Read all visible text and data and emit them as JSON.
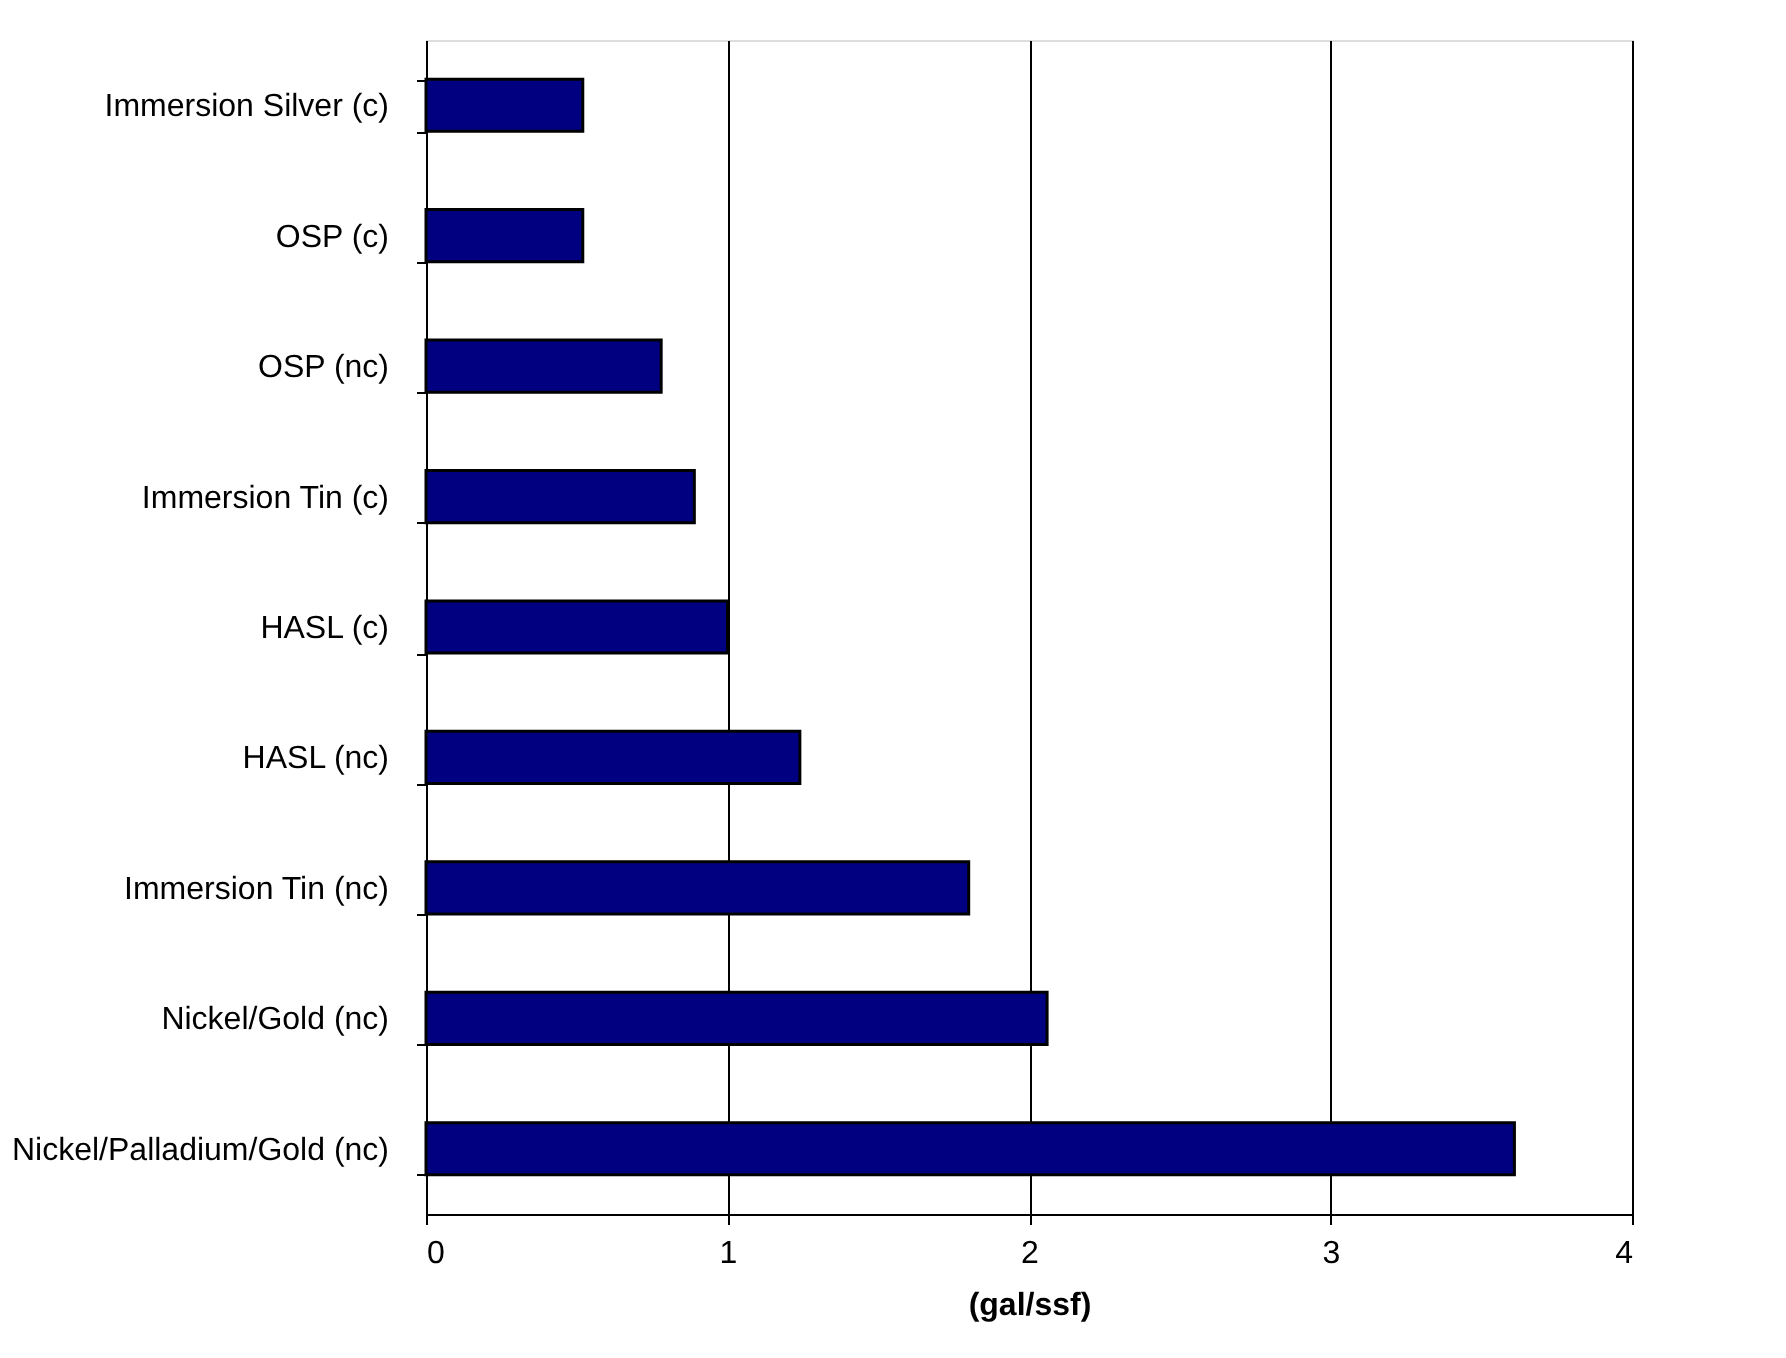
{
  "chart_data": {
    "type": "bar",
    "orientation": "horizontal",
    "xlabel": "(gal/ssf)",
    "categories": [
      "Immersion Silver (c)",
      "OSP (c)",
      "OSP (nc)",
      "Immersion Tin (c)",
      "HASL (c)",
      "HASL (nc)",
      "Immersion Tin (nc)",
      "Nickel/Gold (nc)",
      "Nickel/Palladium/Gold (nc)"
    ],
    "values": [
      0.52,
      0.52,
      0.78,
      0.89,
      1.0,
      1.24,
      1.8,
      2.06,
      3.61
    ],
    "color": "#000080",
    "xlim": [
      0,
      4
    ],
    "xticks": [
      0,
      1,
      2,
      3,
      4
    ],
    "grid": "x"
  }
}
